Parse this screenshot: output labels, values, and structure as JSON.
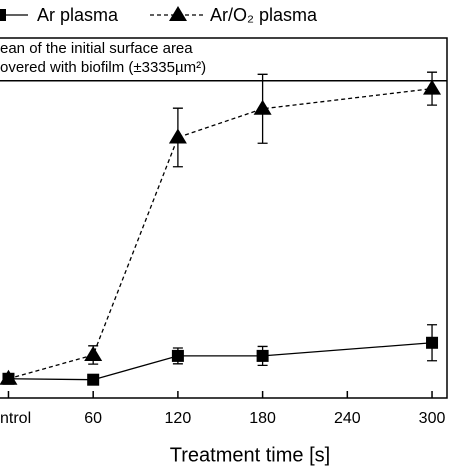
{
  "chart_data": {
    "type": "line",
    "x_label": "Treatment time [s]",
    "annotation": [
      "ean of the initial surface area",
      "overed with biofilm (±3335µm²)"
    ],
    "reference_line": 100,
    "xlim": [
      -6,
      310.6
    ],
    "ylim": [
      -4,
      114
    ],
    "xticks": [
      {
        "value": 0,
        "label": "ntrol"
      },
      60,
      120,
      180,
      240,
      300
    ],
    "series": [
      {
        "name": "Ar plasma",
        "marker": "square",
        "dashed": false,
        "color": "#000000",
        "x": [
          0,
          60,
          120,
          180,
          300
        ],
        "values": [
          2.3,
          2.0,
          9.8,
          9.8,
          14.1
        ],
        "errors": [
          1.6,
          1.0,
          2.6,
          3.1,
          5.9
        ]
      },
      {
        "name": "Ar/O₂ plasma",
        "marker": "triangle",
        "dashed": true,
        "color": "#000000",
        "x": [
          0,
          60,
          120,
          180,
          300
        ],
        "values": [
          2.3,
          10.1,
          81.4,
          90.8,
          97.4
        ],
        "errors": [
          1.6,
          3.0,
          9.6,
          11.3,
          5.4
        ]
      }
    ]
  }
}
